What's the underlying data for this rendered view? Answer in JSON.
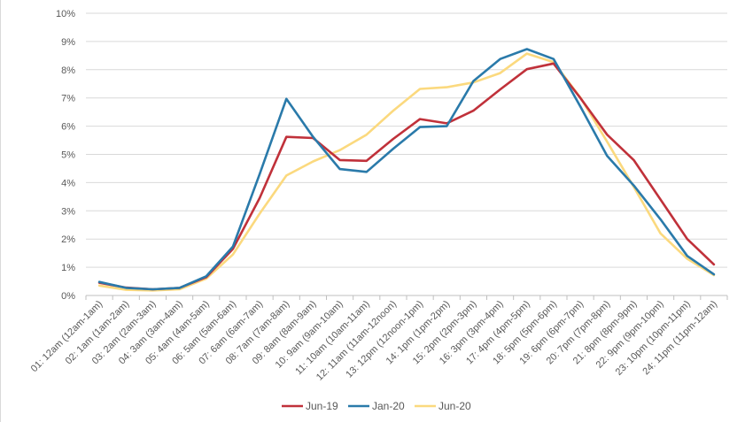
{
  "chart_data": {
    "type": "line",
    "title": "",
    "xlabel": "",
    "ylabel": "",
    "ylim": [
      0,
      10
    ],
    "y_ticks": [
      "0%",
      "1%",
      "2%",
      "3%",
      "4%",
      "5%",
      "6%",
      "7%",
      "8%",
      "9%",
      "10%"
    ],
    "grid": true,
    "legend_position": "bottom",
    "categories": [
      "01: 12am (12am-1am)",
      "02: 1am (1am-2am)",
      "03: 2am (2am-3am)",
      "04: 3am (3am-4am)",
      "05: 4am (4am-5am)",
      "06: 5am (5am-6am)",
      "07: 6am (6am-7am)",
      "08: 7am (7am-8am)",
      "09: 8am (8am-9am)",
      "10: 9am (9am-10am)",
      "11: 10am (10am-11am)",
      "12: 11am (11am-12noon)",
      "13: 12pm (12noon-1pm)",
      "14: 1pm (1pm-2pm)",
      "15: 2pm (2pm-3pm)",
      "16: 3pm (3pm-4pm)",
      "17: 4pm (4pm-5pm)",
      "18: 5pm (5pm-6pm)",
      "19: 6pm (6pm-7pm)",
      "20: 7pm (7pm-8pm)",
      "21: 8pm (8pm-9pm)",
      "22: 9pm (9pm-10pm)",
      "23: 10pm (10pm-11pm)",
      "24: 11pm (11pm-12am)"
    ],
    "series": [
      {
        "name": "Jun-19",
        "color": "#c0313a",
        "values": [
          0.45,
          0.28,
          0.22,
          0.27,
          0.65,
          1.65,
          3.45,
          5.62,
          5.58,
          4.8,
          4.77,
          5.55,
          6.25,
          6.1,
          6.55,
          7.3,
          8.02,
          8.22,
          7.0,
          5.7,
          4.8,
          3.4,
          2.0,
          1.1
        ]
      },
      {
        "name": "Jan-20",
        "color": "#2a7aaa",
        "values": [
          0.48,
          0.27,
          0.22,
          0.27,
          0.68,
          1.73,
          4.3,
          6.97,
          5.62,
          4.48,
          4.38,
          5.2,
          5.97,
          6.0,
          7.6,
          8.38,
          8.73,
          8.38,
          6.7,
          4.95,
          3.9,
          2.7,
          1.4,
          0.75
        ]
      },
      {
        "name": "Jun-20",
        "color": "#fbd97e",
        "values": [
          0.35,
          0.2,
          0.18,
          0.22,
          0.6,
          1.45,
          2.9,
          4.25,
          4.75,
          5.15,
          5.7,
          6.55,
          7.32,
          7.38,
          7.55,
          7.88,
          8.57,
          8.27,
          7.02,
          5.45,
          3.85,
          2.2,
          1.3,
          0.72
        ]
      }
    ]
  }
}
